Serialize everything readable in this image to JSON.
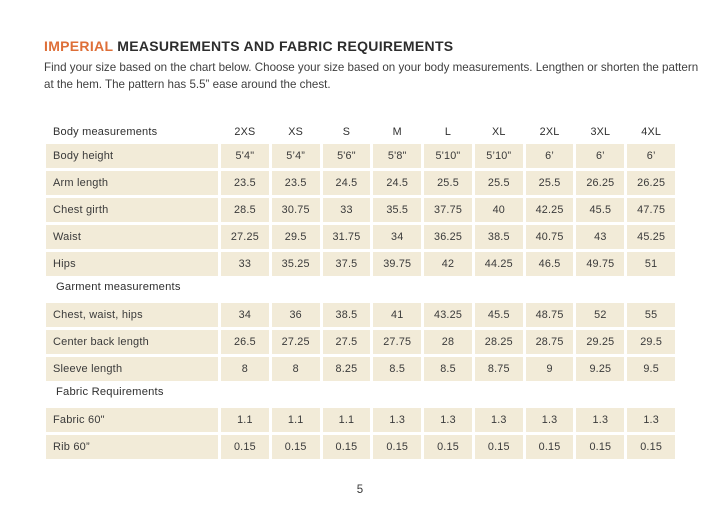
{
  "header": {
    "title_accent": "IMPERIAL",
    "title_rest": "MEASUREMENTS AND FABRIC REQUIREMENTS",
    "intro": "Find your size based on the chart below. Choose your size based on your body measurements. Lengthen or shorten the pattern at the hem. The pattern has 5.5” ease around the chest."
  },
  "colors": {
    "accent_orange": "#DE6F38",
    "cell_background": "#F2EBD8",
    "heading_text": "#2D2D2D",
    "body_text": "#3F3F3F"
  },
  "table": {
    "header": {
      "label": "Body measurements",
      "sizes": [
        "2XS",
        "XS",
        "S",
        "M",
        "L",
        "XL",
        "2XL",
        "3XL",
        "4XL"
      ]
    },
    "sections": [
      {
        "heading": "",
        "rows": [
          {
            "label": "Body height",
            "values": [
              "5'4\"",
              "5’4”",
              "5'6\"",
              "5'8\"",
              "5'10\"",
              "5’10”",
              "6’",
              "6’",
              "6’"
            ]
          },
          {
            "label": "Arm length",
            "values": [
              23.5,
              23.5,
              24.5,
              24.5,
              25.5,
              25.5,
              25.5,
              26.25,
              26.25
            ]
          },
          {
            "label": "Chest girth",
            "values": [
              28.5,
              30.75,
              33,
              35.5,
              37.75,
              40,
              42.25,
              45.5,
              47.75
            ]
          },
          {
            "label": "Waist",
            "values": [
              27.25,
              29.5,
              31.75,
              34,
              36.25,
              38.5,
              40.75,
              43,
              45.25
            ]
          },
          {
            "label": "Hips",
            "values": [
              33,
              35.25,
              37.5,
              39.75,
              42,
              44.25,
              46.5,
              49.75,
              51
            ]
          }
        ]
      },
      {
        "heading": "Garment measurements",
        "rows": [
          {
            "label": "Chest, waist, hips",
            "values": [
              34,
              36,
              38.5,
              41,
              43.25,
              45.5,
              48.75,
              52,
              55
            ]
          },
          {
            "label": "Center back length",
            "values": [
              26.5,
              27.25,
              27.5,
              27.75,
              28,
              28.25,
              28.75,
              29.25,
              29.5
            ]
          },
          {
            "label": "Sleeve length",
            "values": [
              8,
              8,
              8.25,
              8.5,
              8.5,
              8.75,
              9,
              9.25,
              9.5
            ]
          }
        ]
      },
      {
        "heading": "Fabric Requirements",
        "rows": [
          {
            "label": "Fabric 60\"",
            "values": [
              1.1,
              1.1,
              1.1,
              1.3,
              1.3,
              1.3,
              1.3,
              1.3,
              1.3
            ]
          },
          {
            "label": "Rib 60”",
            "values": [
              0.15,
              0.15,
              0.15,
              0.15,
              0.15,
              0.15,
              0.15,
              0.15,
              0.15
            ]
          }
        ]
      }
    ]
  },
  "footer": {
    "page_number": "5"
  }
}
